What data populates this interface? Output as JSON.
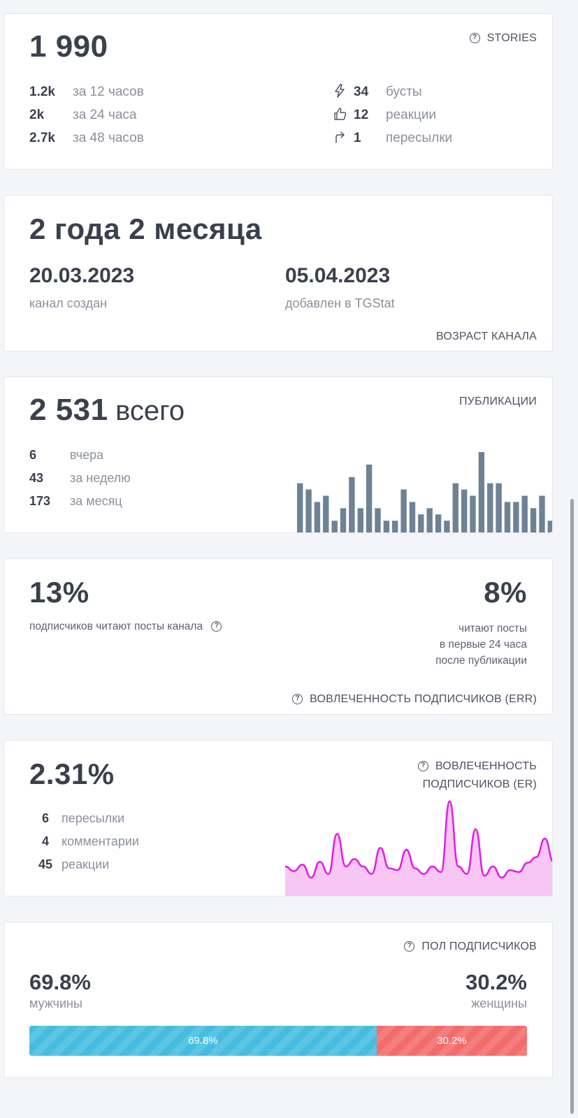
{
  "views": {
    "total": "1 990",
    "stories_label": "STORIES",
    "rows": [
      {
        "value": "1.2k",
        "label": "за 12 часов"
      },
      {
        "value": "2k",
        "label": "за 24 часа"
      },
      {
        "value": "2.7k",
        "label": "за 48 часов"
      }
    ],
    "right_rows": [
      {
        "icon": "lightning-icon",
        "value": "34",
        "label": "бусты"
      },
      {
        "icon": "thumbs-up-icon",
        "value": "12",
        "label": "реакции"
      },
      {
        "icon": "forward-arrow-icon",
        "value": "1",
        "label": "пересылки"
      }
    ]
  },
  "age": {
    "title": "2 года 2 месяца",
    "created_date": "20.03.2023",
    "created_label": "канал создан",
    "added_date": "05.04.2023",
    "added_label": "добавлен в TGStat",
    "caption": "ВОЗРАСТ КАНАЛА"
  },
  "publications": {
    "total_value": "2 531",
    "total_suffix": "всего",
    "caption": "ПУБЛИКАЦИИ",
    "rows": [
      {
        "value": "6",
        "label": "вчера"
      },
      {
        "value": "43",
        "label": "за неделю"
      },
      {
        "value": "173",
        "label": "за месяц"
      }
    ],
    "bars": [
      8,
      7,
      5,
      6,
      2,
      4,
      9,
      4,
      11,
      4,
      2,
      2,
      7,
      5,
      3,
      4,
      3,
      2,
      8,
      7,
      6,
      13,
      8,
      8,
      5,
      5,
      6,
      4,
      6,
      2
    ],
    "bar_color": "#6e8296"
  },
  "err": {
    "value": "13%",
    "label": "подписчиков читают посты канала",
    "right_value": "8%",
    "right_lines": [
      "читают посты",
      "в первые 24 часа",
      "после публикации"
    ],
    "caption": "ВОВЛЕЧЕННОСТЬ ПОДПИСЧИКОВ (ERR)"
  },
  "er": {
    "value": "2.31%",
    "caption_line1": "ВОВЛЕЧЕННОСТЬ",
    "caption_line2": "ПОДПИСЧИКОВ (ER)",
    "rows": [
      {
        "value": "6",
        "label": "пересылки"
      },
      {
        "value": "4",
        "label": "комментарии"
      },
      {
        "value": "45",
        "label": "реакции"
      }
    ],
    "series": [
      3,
      2.5,
      3.2,
      1.8,
      3.5,
      2.2,
      6.5,
      3,
      3.8,
      3,
      2.2,
      5,
      2.8,
      2.6,
      4.8,
      2.8,
      2.2,
      3,
      2.4,
      10,
      3,
      2.2,
      7,
      2,
      3,
      1.8,
      2.6,
      2.4,
      3.4,
      4,
      6,
      3.5
    ],
    "line_color": "#e21de0",
    "fill_color": "#f7c6f3"
  },
  "gender": {
    "caption": "ПОЛ ПОДПИСЧИКОВ",
    "male_value": "69.8%",
    "male_label": "мужчины",
    "female_value": "30.2%",
    "female_label": "женщины",
    "male_fraction": 0.698,
    "male_bar_label": "69.8%",
    "female_bar_label": "30.2%",
    "male_color": "#46bde0",
    "female_color": "#f36c6c"
  }
}
